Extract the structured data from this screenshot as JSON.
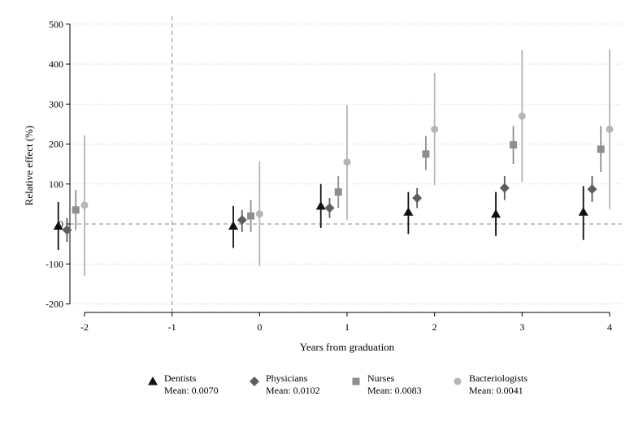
{
  "chart_data": {
    "type": "scatter",
    "subtype": "coefficient-plot-with-error-bars",
    "xlabel": "Years from graduation",
    "ylabel": "Relative effect (%)",
    "xlim": [
      -2,
      4
    ],
    "ylim": [
      -200,
      500
    ],
    "x_ticks": [
      -2,
      -1,
      0,
      1,
      2,
      3,
      4
    ],
    "y_ticks": [
      -200,
      -100,
      0,
      100,
      200,
      300,
      400,
      500
    ],
    "grid": "horizontal dotted",
    "reference_lines": {
      "x": -1,
      "y": 0
    },
    "legend_position": "bottom",
    "series": [
      {
        "name": "Dentists",
        "note": "Mean: 0.0070",
        "marker": "triangle",
        "color": "#111111",
        "points": [
          {
            "x": -2,
            "y": -5,
            "lo": -65,
            "hi": 55
          },
          {
            "x": 0,
            "y": -5,
            "lo": -60,
            "hi": 45
          },
          {
            "x": 1,
            "y": 45,
            "lo": -10,
            "hi": 100
          },
          {
            "x": 2,
            "y": 30,
            "lo": -25,
            "hi": 80
          },
          {
            "x": 3,
            "y": 25,
            "lo": -30,
            "hi": 80
          },
          {
            "x": 4,
            "y": 30,
            "lo": -40,
            "hi": 95
          }
        ]
      },
      {
        "name": "Physicians",
        "note": "Mean: 0.0102",
        "marker": "diamond",
        "color": "#5e5e5e",
        "points": [
          {
            "x": -2,
            "y": -15,
            "lo": -45,
            "hi": 15
          },
          {
            "x": 0,
            "y": 10,
            "lo": -20,
            "hi": 35
          },
          {
            "x": 1,
            "y": 40,
            "lo": 15,
            "hi": 65
          },
          {
            "x": 2,
            "y": 65,
            "lo": 40,
            "hi": 90
          },
          {
            "x": 3,
            "y": 90,
            "lo": 60,
            "hi": 120
          },
          {
            "x": 4,
            "y": 87,
            "lo": 55,
            "hi": 120
          }
        ]
      },
      {
        "name": "Nurses",
        "note": "Mean: 0.0083",
        "marker": "square",
        "color": "#8e8e8e",
        "points": [
          {
            "x": -2,
            "y": 35,
            "lo": -15,
            "hi": 85
          },
          {
            "x": 0,
            "y": 20,
            "lo": -20,
            "hi": 60
          },
          {
            "x": 1,
            "y": 80,
            "lo": 40,
            "hi": 120
          },
          {
            "x": 2,
            "y": 175,
            "lo": 135,
            "hi": 220
          },
          {
            "x": 3,
            "y": 198,
            "lo": 150,
            "hi": 245
          },
          {
            "x": 4,
            "y": 187,
            "lo": 130,
            "hi": 245
          }
        ]
      },
      {
        "name": "Bacteriologists",
        "note": "Mean: 0.0041",
        "marker": "circle",
        "color": "#b5b5b5",
        "points": [
          {
            "x": -2,
            "y": 47,
            "lo": -130,
            "hi": 222
          },
          {
            "x": 0,
            "y": 25,
            "lo": -105,
            "hi": 157
          },
          {
            "x": 1,
            "y": 155,
            "lo": 10,
            "hi": 297
          },
          {
            "x": 2,
            "y": 237,
            "lo": 97,
            "hi": 378
          },
          {
            "x": 3,
            "y": 270,
            "lo": 105,
            "hi": 435
          },
          {
            "x": 4,
            "y": 237,
            "lo": 37,
            "hi": 437
          }
        ]
      }
    ]
  }
}
